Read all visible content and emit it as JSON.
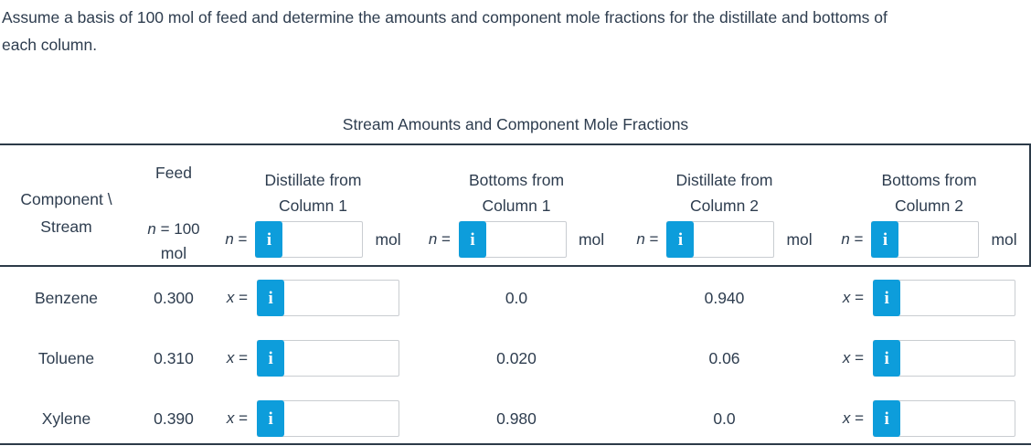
{
  "page": {
    "instructions_line1": "Assume a basis of 100 mol of feed and determine the amounts and component mole fractions for the distillate and bottoms of",
    "instructions_line2": "each column."
  },
  "table": {
    "title": "Stream Amounts and Component Mole Fractions",
    "corner": {
      "line1": "Component \\",
      "line2": "Stream"
    },
    "feed": {
      "label": "Feed",
      "var": "n",
      "eq_value": "= 100",
      "unit": "mol"
    },
    "info_icon": "i",
    "columns": [
      {
        "line1": "Distillate from",
        "line2": "Column 1",
        "var": "n",
        "eq": "=",
        "unit": "mol",
        "input_value": ""
      },
      {
        "line1": "Bottoms from",
        "line2": "Column 1",
        "var": "n",
        "eq": "=",
        "unit": "mol",
        "input_value": ""
      },
      {
        "line1": "Distillate from",
        "line2": "Column 2",
        "var": "n",
        "eq": "=",
        "unit": "mol",
        "input_value": ""
      },
      {
        "line1": "Bottoms from",
        "line2": "Column 2",
        "var": "n",
        "eq": "=",
        "unit": "mol",
        "input_value": ""
      }
    ],
    "rows": [
      {
        "component": "Benzene",
        "feed_x": "0.300",
        "var": "x",
        "eq": "=",
        "distillate1_input": "",
        "bottoms1_x": "0.0",
        "distillate2_x": "0.940",
        "bottoms2_input": ""
      },
      {
        "component": "Toluene",
        "feed_x": "0.310",
        "var": "x",
        "eq": "=",
        "distillate1_input": "",
        "bottoms1_x": "0.020",
        "distillate2_x": "0.06",
        "bottoms2_input": ""
      },
      {
        "component": "Xylene",
        "feed_x": "0.390",
        "var": "x",
        "eq": "=",
        "distillate1_input": "",
        "bottoms1_x": "0.980",
        "distillate2_x": "0.0",
        "bottoms2_input": ""
      }
    ]
  },
  "colors": {
    "text": "#2e3d4f",
    "rule": "#2c3a48",
    "info_button_blue": "#0d9ddb",
    "input_border": "#c9cdd1"
  }
}
